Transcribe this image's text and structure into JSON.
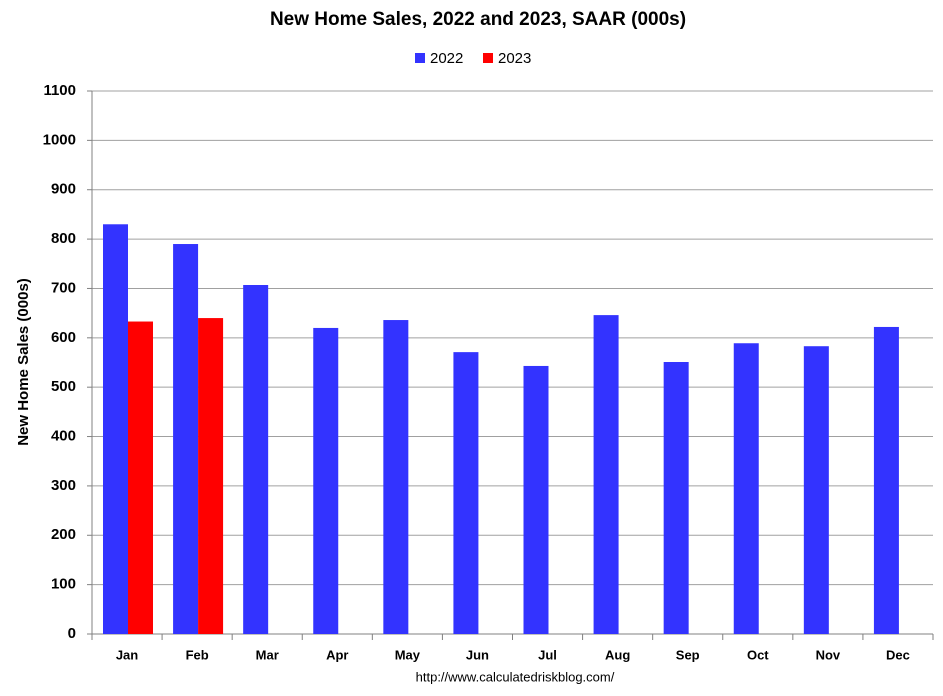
{
  "chart_data": {
    "type": "bar",
    "title": "New Home Sales,  2022 and 2023, SAAR (000s)",
    "y_label": "New Home Sales (000s)",
    "source": "http://www.calculatedriskblog.com/",
    "categories": [
      "Jan",
      "Feb",
      "Mar",
      "Apr",
      "May",
      "Jun",
      "Jul",
      "Aug",
      "Sep",
      "Oct",
      "Nov",
      "Dec"
    ],
    "series": [
      {
        "name": "2022",
        "color": "#3333ff",
        "values": [
          830,
          790,
          707,
          620,
          636,
          571,
          543,
          646,
          551,
          589,
          583,
          622
        ]
      },
      {
        "name": "2023",
        "color": "#ff0000",
        "values": [
          633,
          640,
          null,
          null,
          null,
          null,
          null,
          null,
          null,
          null,
          null,
          null
        ]
      }
    ],
    "ylim": [
      0,
      1100
    ],
    "yticks": [
      0,
      100,
      200,
      300,
      400,
      500,
      600,
      700,
      800,
      900,
      1000,
      1100
    ],
    "grid": true,
    "legend": "top"
  }
}
